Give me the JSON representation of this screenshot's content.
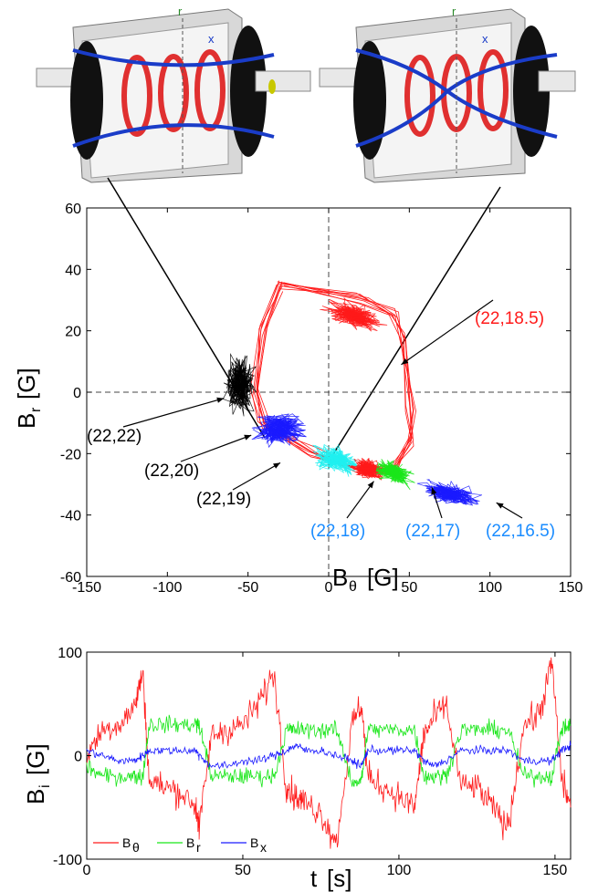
{
  "colors": {
    "red": "#ff1a1a",
    "green": "#19e619",
    "blue": "#1a1aff",
    "cyan": "#1ff0f0",
    "magenta": "#ff33ff",
    "black": "#000000",
    "annot_blue": "#1a8cff"
  },
  "chart_data": [
    {
      "type": "scatter",
      "xlabel": "B",
      "xlabel_sub": "θ",
      "xlabel_unit": "[G]",
      "ylabel": "B",
      "ylabel_sub": "r",
      "ylabel_unit": "[G]",
      "xlim": [
        -150,
        150
      ],
      "ylim": [
        -60,
        60
      ],
      "xticks": [
        "-150",
        "-100",
        "-50",
        "0",
        "50",
        "100",
        "150"
      ],
      "yticks": [
        "60",
        "40",
        "20",
        "0",
        "-20",
        "-40",
        "-60"
      ],
      "grid": false,
      "reference_lines": {
        "x": 0,
        "y": 0
      },
      "series": [
        {
          "name": "(22,22)",
          "color": "#000000",
          "center": [
            -55,
            2
          ],
          "spread": [
            8,
            8
          ]
        },
        {
          "name": "(22,20)",
          "color": "#1a1aff",
          "center": [
            -30,
            -12
          ],
          "spread": [
            14,
            5
          ]
        },
        {
          "name": "(22,19)",
          "color": "#1ff0f0",
          "center": [
            5,
            -22
          ],
          "spread": [
            12,
            3.5
          ]
        },
        {
          "name": "(22,18.5)",
          "color": "#ff1a1a",
          "center": [
            15,
            25
          ],
          "spread": [
            15,
            3.5
          ]
        },
        {
          "name": "(22,18)",
          "color": "#ff1a1a",
          "center": [
            25,
            -25
          ],
          "spread": [
            9,
            3
          ]
        },
        {
          "name": "(22,17)",
          "color": "#19e619",
          "center": [
            40,
            -26
          ],
          "spread": [
            9,
            3
          ]
        },
        {
          "name": "(22,16.5)",
          "color": "#1a1aff",
          "center": [
            75,
            -33
          ],
          "spread": [
            15,
            3
          ]
        }
      ],
      "loop": {
        "color": "#ff1a1a",
        "path": [
          [
            -30,
            35
          ],
          [
            20,
            30
          ],
          [
            40,
            25
          ],
          [
            45,
            18
          ],
          [
            50,
            -5
          ],
          [
            50,
            -15
          ],
          [
            40,
            -25
          ],
          [
            20,
            -25
          ],
          [
            -10,
            -20
          ],
          [
            -40,
            -10
          ],
          [
            -45,
            0
          ],
          [
            -40,
            20
          ],
          [
            -30,
            35
          ]
        ]
      },
      "annotations": [
        {
          "text": "(22,22)",
          "color": "#000000",
          "target": [
            -65,
            -2
          ]
        },
        {
          "text": "(22,20)",
          "color": "#000000",
          "target": [
            -48,
            -14
          ]
        },
        {
          "text": "(22,19)",
          "color": "#000000",
          "target": [
            -30,
            -23
          ]
        },
        {
          "text": "(22,18.5)",
          "color": "#ff1a1a",
          "target": [
            45,
            9
          ]
        },
        {
          "text": "(22,18)",
          "color": "#1a8cff",
          "target": [
            28,
            -29
          ]
        },
        {
          "text": "(22,17)",
          "color": "#1a8cff",
          "target": [
            64,
            -31
          ]
        },
        {
          "text": "(22,16.5)",
          "color": "#1a8cff",
          "target": [
            104,
            -36
          ]
        }
      ]
    },
    {
      "type": "line",
      "xlabel": "t",
      "xlabel_unit": "[s]",
      "ylabel": "B",
      "ylabel_sub": "i",
      "ylabel_unit": "[G]",
      "xlim": [
        0,
        155
      ],
      "ylim": [
        -100,
        100
      ],
      "xticks": [
        "0",
        "50",
        "100",
        "150"
      ],
      "yticks": [
        "100",
        "0",
        "-100"
      ],
      "legend": "bottom-left",
      "series": [
        {
          "name": "B",
          "name_sub": "θ",
          "color": "#ff1a1a",
          "x": [
            0,
            5,
            10,
            15,
            18,
            20,
            25,
            30,
            35,
            36,
            40,
            45,
            50,
            55,
            60,
            64,
            67,
            70,
            75,
            80,
            85,
            88,
            90,
            95,
            100,
            105,
            108,
            111,
            115,
            120,
            125,
            130,
            135,
            140,
            145,
            149,
            152,
            155
          ],
          "y": [
            0,
            25,
            30,
            45,
            80,
            -25,
            -30,
            -35,
            -50,
            -70,
            20,
            25,
            30,
            50,
            80,
            -30,
            -40,
            -45,
            -55,
            -85,
            30,
            50,
            -20,
            -30,
            -40,
            -50,
            20,
            35,
            50,
            -30,
            -30,
            -50,
            -70,
            30,
            40,
            90,
            -20,
            -50
          ]
        },
        {
          "name": "B",
          "name_sub": "r",
          "color": "#19e619",
          "x": [
            0,
            5,
            10,
            15,
            18,
            20,
            25,
            30,
            35,
            36,
            40,
            45,
            50,
            55,
            60,
            64,
            67,
            70,
            75,
            80,
            85,
            88,
            90,
            95,
            100,
            105,
            108,
            111,
            115,
            120,
            125,
            130,
            135,
            140,
            145,
            149,
            152,
            155
          ],
          "y": [
            -10,
            -20,
            -20,
            -20,
            -20,
            30,
            30,
            30,
            30,
            30,
            -20,
            -20,
            -20,
            -20,
            -20,
            25,
            25,
            25,
            25,
            25,
            -25,
            -25,
            25,
            25,
            25,
            25,
            -20,
            -20,
            -20,
            25,
            25,
            25,
            25,
            -20,
            -20,
            -20,
            25,
            30
          ]
        },
        {
          "name": "B",
          "name_sub": "x",
          "color": "#1a1aff",
          "x": [
            0,
            5,
            10,
            15,
            18,
            20,
            25,
            30,
            35,
            36,
            40,
            45,
            50,
            55,
            60,
            64,
            67,
            70,
            75,
            80,
            85,
            88,
            90,
            95,
            100,
            105,
            108,
            111,
            115,
            120,
            125,
            130,
            135,
            140,
            145,
            149,
            152,
            155
          ],
          "y": [
            5,
            0,
            -5,
            -5,
            0,
            5,
            5,
            5,
            5,
            0,
            -10,
            -10,
            -5,
            -5,
            0,
            5,
            10,
            5,
            5,
            0,
            -5,
            -10,
            5,
            5,
            5,
            5,
            -5,
            -10,
            -5,
            5,
            5,
            5,
            5,
            -5,
            -5,
            -5,
            5,
            10
          ]
        }
      ]
    }
  ]
}
